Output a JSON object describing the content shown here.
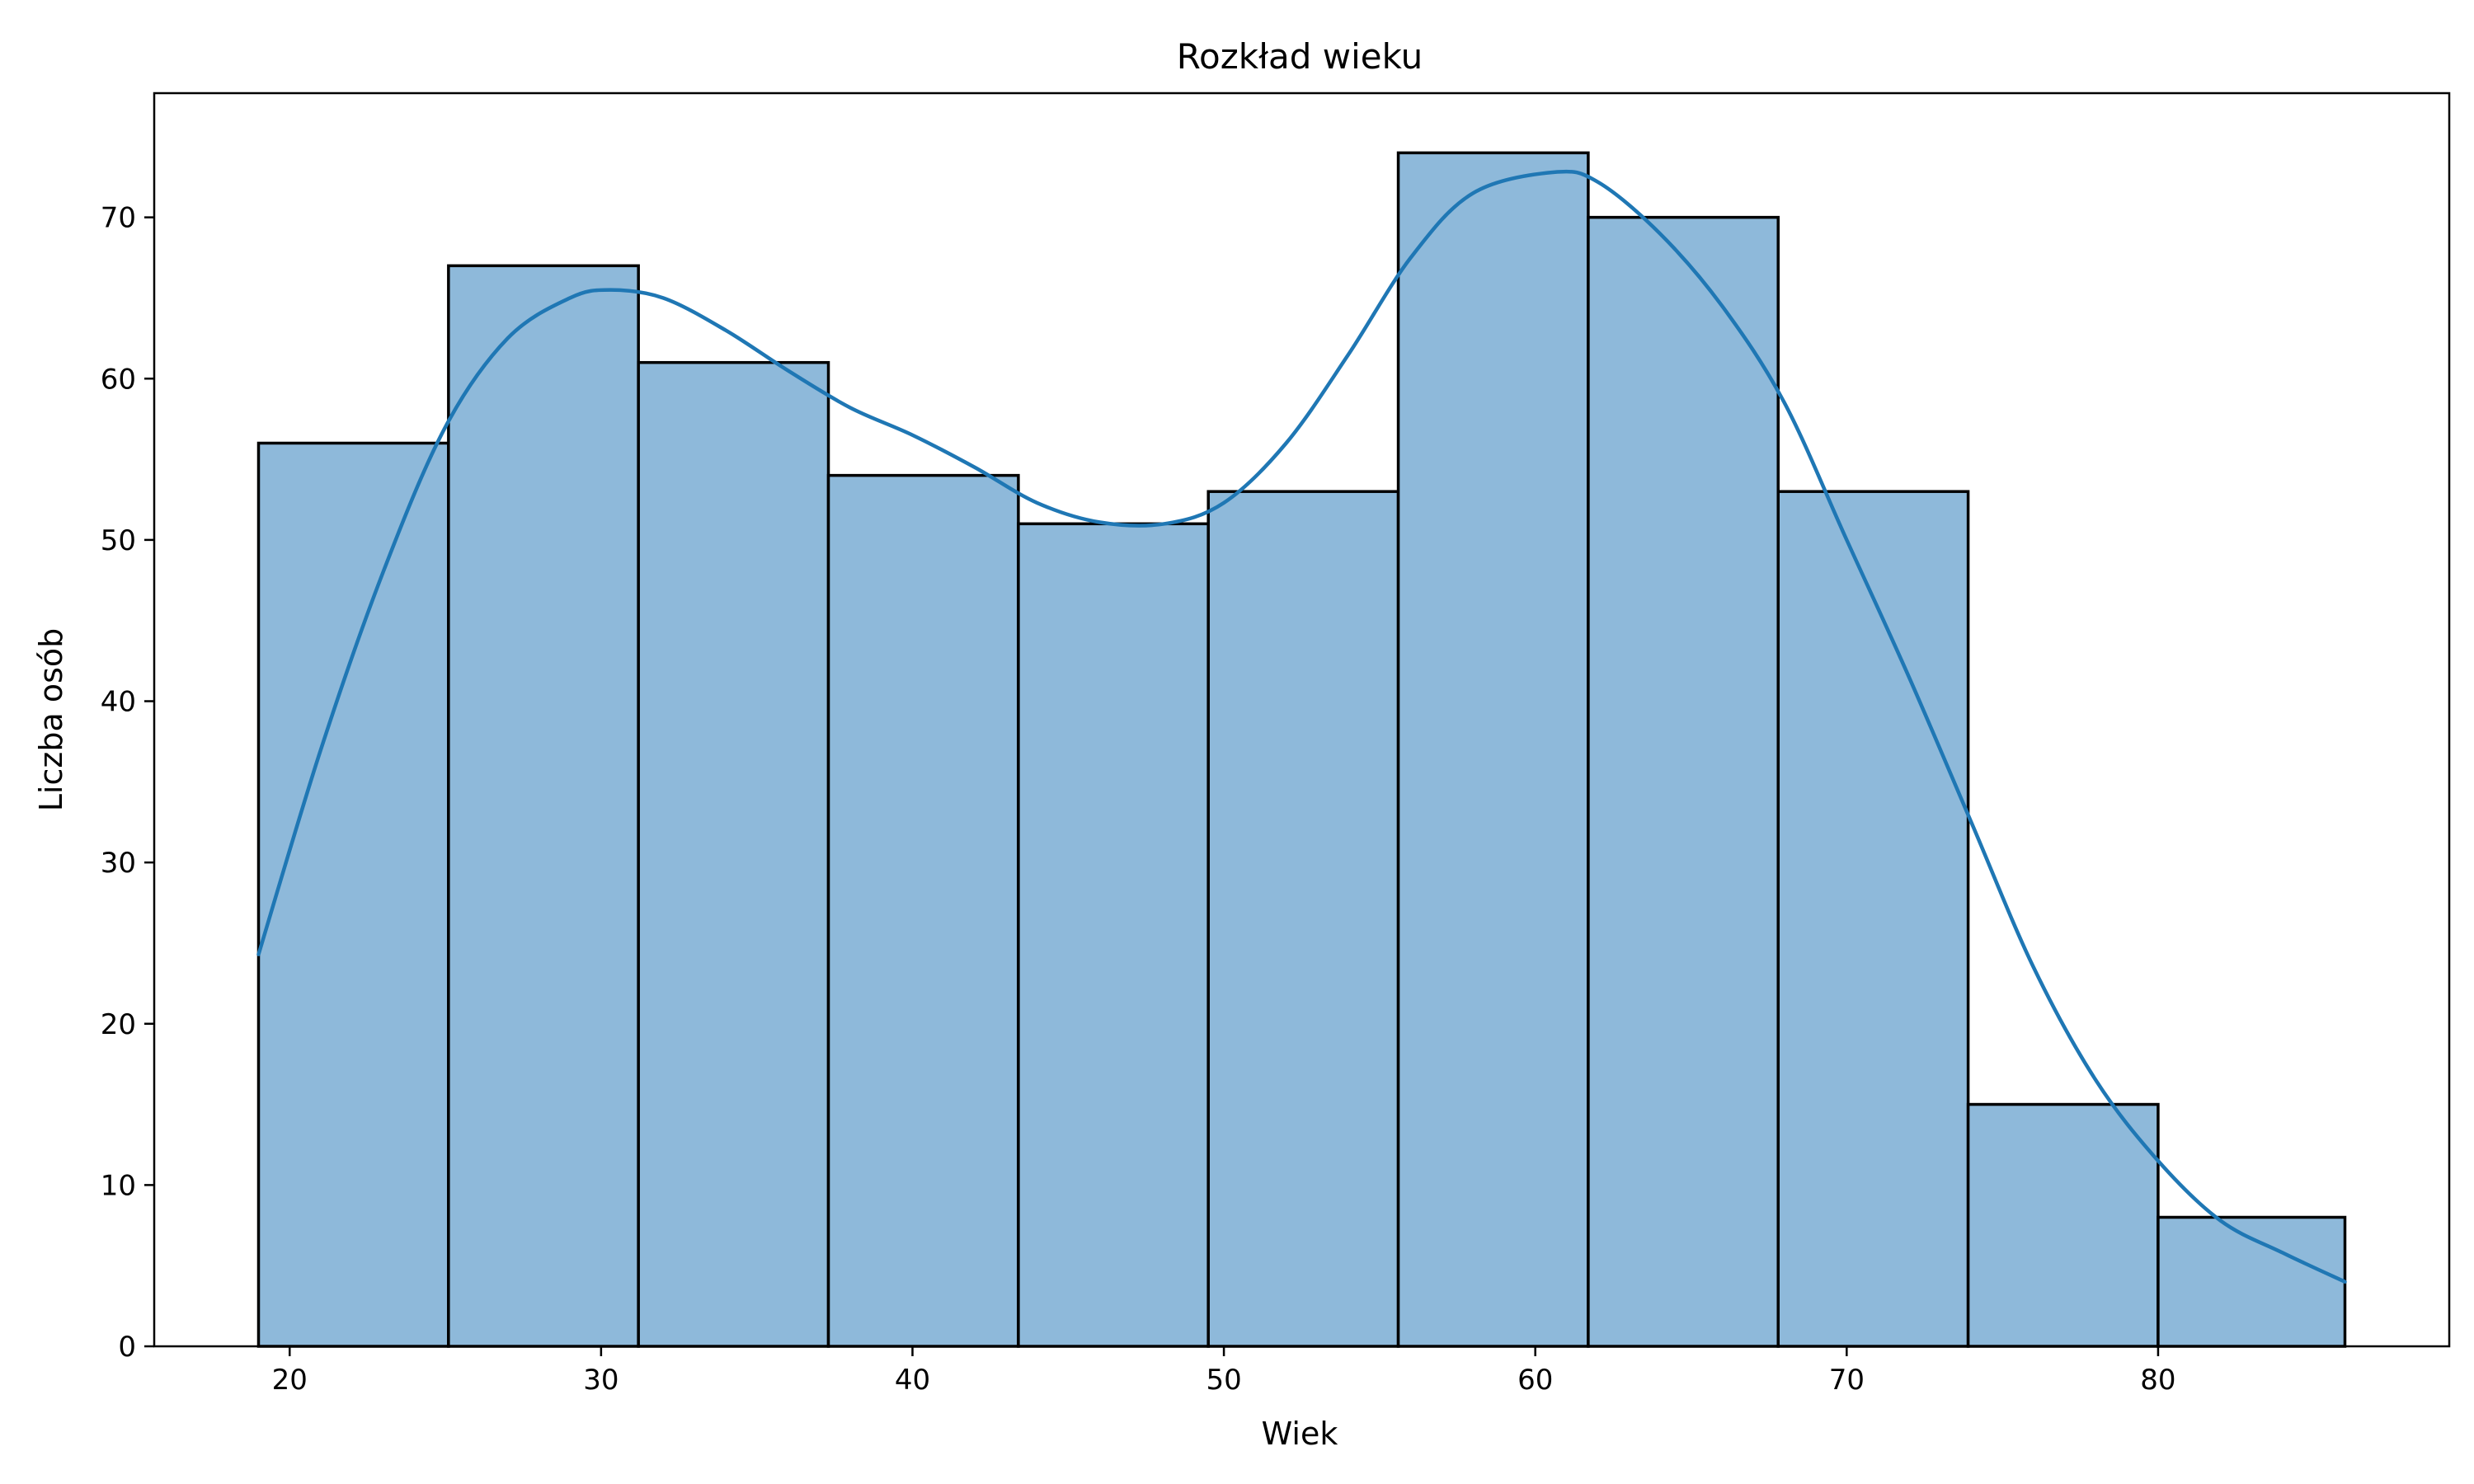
{
  "chart_data": {
    "type": "bar",
    "title": "Rozkład wieku",
    "xlabel": "Wiek",
    "ylabel": "Liczba osób",
    "xlim": [
      15.65,
      89.35
    ],
    "ylim": [
      0,
      77.7
    ],
    "xticks": [
      20,
      30,
      40,
      50,
      60,
      70,
      80
    ],
    "yticks": [
      0,
      10,
      20,
      30,
      40,
      50,
      60,
      70
    ],
    "grid": false,
    "bins": {
      "edges": [
        19,
        25.1,
        31.2,
        37.3,
        43.4,
        49.5,
        55.6,
        61.7,
        67.8,
        73.9,
        80,
        86
      ],
      "values": [
        56,
        67,
        61,
        54,
        51,
        53,
        74,
        70,
        53,
        15,
        8
      ]
    },
    "kde": {
      "x": [
        19,
        21,
        23,
        25,
        27,
        29,
        30.3,
        32,
        34,
        36,
        38,
        40,
        42,
        44,
        46,
        48.1,
        50,
        52,
        54,
        56,
        58,
        60.6,
        62,
        64,
        66,
        68,
        70,
        72,
        74,
        76,
        78,
        80,
        82,
        84,
        86
      ],
      "y": [
        24.3,
        37,
        48,
        57,
        62.5,
        65,
        65.5,
        65,
        63,
        60.5,
        58.2,
        56.5,
        54.5,
        52.3,
        51.1,
        51,
        52.3,
        56,
        61.5,
        67.5,
        71.5,
        72.8,
        72.2,
        69,
        64.5,
        58.5,
        50,
        41.5,
        32.5,
        23.5,
        16.5,
        11.5,
        7.8,
        5.8,
        4
      ]
    },
    "colors": {
      "bar_fill": "#8eb9da",
      "bar_edge": "#000000",
      "line": "#1f77b4"
    }
  }
}
